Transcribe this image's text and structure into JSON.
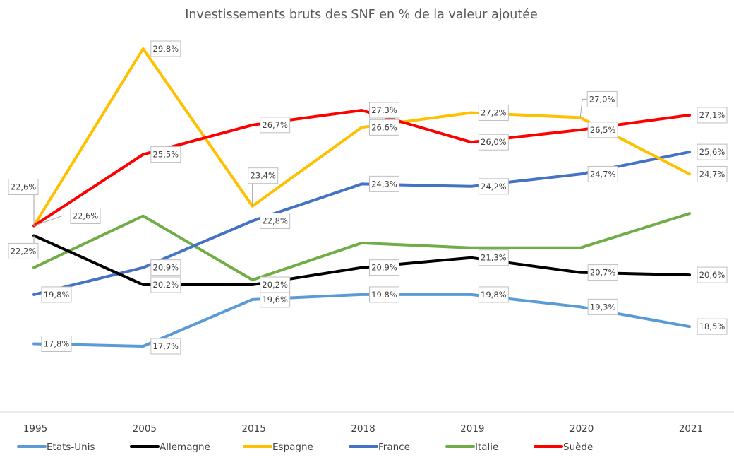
{
  "chart_data": {
    "type": "line",
    "title": "Investissements bruts des SNF en % de la valeur ajoutée",
    "xlabel": "",
    "ylabel": "",
    "categories": [
      "1995",
      "2005",
      "2015",
      "2018",
      "2019",
      "2020",
      "2021"
    ],
    "ylim": [
      16.3,
      30.5
    ],
    "grid": false,
    "y_axis_visible": false,
    "legend_position": "bottom",
    "series": [
      {
        "name": "Etats-Unis",
        "color": "#5b9bd5",
        "values": [
          17.8,
          17.7,
          19.6,
          19.8,
          19.8,
          19.3,
          18.5
        ],
        "labels": [
          "17,8%",
          "17,7%",
          "19,6%",
          "19,8%",
          "19,8%",
          "19,3%",
          "18,5%"
        ]
      },
      {
        "name": "Allemagne",
        "color": "#000000",
        "values": [
          22.2,
          20.2,
          20.2,
          20.9,
          21.3,
          20.7,
          20.6
        ],
        "labels": [
          "22,2%",
          "20,2%",
          "20,2%",
          "20,9%",
          "21,3%",
          "20,7%",
          "20,6%"
        ]
      },
      {
        "name": "Espagne",
        "color": "#ffc000",
        "values": [
          22.6,
          29.8,
          23.4,
          26.6,
          27.2,
          27.0,
          24.7
        ],
        "labels": [
          "22,6%",
          "29,8%",
          "23,4%",
          "26,6%",
          "27,2%",
          "27,0%",
          "24,7%"
        ]
      },
      {
        "name": "France",
        "color": "#4472c4",
        "values": [
          19.8,
          20.9,
          22.8,
          24.3,
          24.2,
          24.7,
          25.6
        ],
        "labels": [
          "19,8%",
          "20,9%",
          "22,8%",
          "24,3%",
          "24,2%",
          "24,7%",
          "25,6%"
        ]
      },
      {
        "name": "Italie",
        "color": "#70ad47",
        "values": [
          20.9,
          23.0,
          20.4,
          21.9,
          21.7,
          21.7,
          23.1
        ],
        "labels": []
      },
      {
        "name": "Suède",
        "color": "#ff0000",
        "values": [
          22.6,
          25.5,
          26.7,
          27.3,
          26.0,
          26.5,
          27.1
        ],
        "labels": [
          "22,6%",
          "25,5%",
          "26,7%",
          "27,3%",
          "26,0%",
          "26,5%",
          "27,1%"
        ]
      }
    ]
  }
}
